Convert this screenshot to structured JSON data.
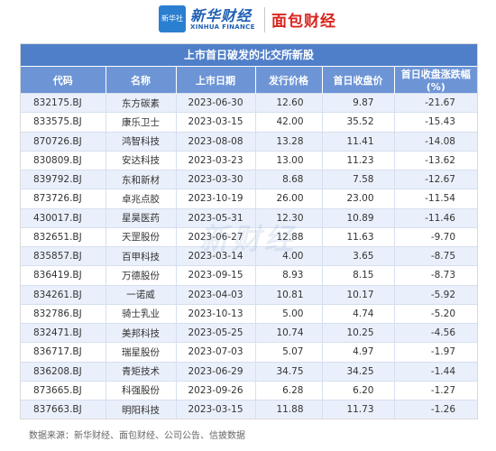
{
  "header": {
    "logo_box_text": "新华社",
    "brand_xinhua": "新华财经",
    "brand_xinhua_en": "XINHUA FINANCE",
    "brand_mianbao": "面包财经"
  },
  "table": {
    "title": "上市首日破发的北交所新股",
    "columns": [
      "代码",
      "名称",
      "上市日期",
      "发行价格",
      "首日收盘价",
      "首日收盘涨跌幅(%)"
    ],
    "rows": [
      [
        "832175.BJ",
        "东方碳素",
        "2023-06-30",
        "12.60",
        "9.87",
        "-21.67"
      ],
      [
        "833575.BJ",
        "康乐卫士",
        "2023-03-15",
        "42.00",
        "35.52",
        "-15.43"
      ],
      [
        "870726.BJ",
        "鸿智科技",
        "2023-08-08",
        "13.28",
        "11.41",
        "-14.08"
      ],
      [
        "830809.BJ",
        "安达科技",
        "2023-03-23",
        "13.00",
        "11.23",
        "-13.62"
      ],
      [
        "839792.BJ",
        "东和新材",
        "2023-03-30",
        "8.68",
        "7.58",
        "-12.67"
      ],
      [
        "873726.BJ",
        "卓兆点胶",
        "2023-10-19",
        "26.00",
        "23.00",
        "-11.54"
      ],
      [
        "430017.BJ",
        "星昊医药",
        "2023-05-31",
        "12.30",
        "10.89",
        "-11.46"
      ],
      [
        "832651.BJ",
        "天罡股份",
        "2023-06-27",
        "12.88",
        "11.63",
        "-9.70"
      ],
      [
        "835857.BJ",
        "百甲科技",
        "2023-03-14",
        "4.00",
        "3.65",
        "-8.75"
      ],
      [
        "836419.BJ",
        "万德股份",
        "2023-09-15",
        "8.93",
        "8.15",
        "-8.73"
      ],
      [
        "834261.BJ",
        "一诺威",
        "2023-04-03",
        "10.81",
        "10.17",
        "-5.92"
      ],
      [
        "832786.BJ",
        "骑士乳业",
        "2023-10-13",
        "5.00",
        "4.74",
        "-5.20"
      ],
      [
        "832471.BJ",
        "美邦科技",
        "2023-05-25",
        "10.74",
        "10.25",
        "-4.56"
      ],
      [
        "836717.BJ",
        "瑞星股份",
        "2023-07-03",
        "5.07",
        "4.97",
        "-1.97"
      ],
      [
        "836208.BJ",
        "青矩技术",
        "2023-06-29",
        "34.75",
        "34.25",
        "-1.44"
      ],
      [
        "873665.BJ",
        "科强股份",
        "2023-09-26",
        "6.28",
        "6.20",
        "-1.27"
      ],
      [
        "837663.BJ",
        "明阳科技",
        "2023-03-15",
        "11.88",
        "11.73",
        "-1.26"
      ]
    ]
  },
  "watermark": "新财经",
  "source": "数据来源：新华财经、面包财经、公司公告、信披数据",
  "colors": {
    "title_bar": "#4f7fc8",
    "header_row": "#6d95d6",
    "stripe": "#eaf0fb",
    "brand_red": "#d8261f",
    "brand_blue": "#1f5fb3"
  }
}
